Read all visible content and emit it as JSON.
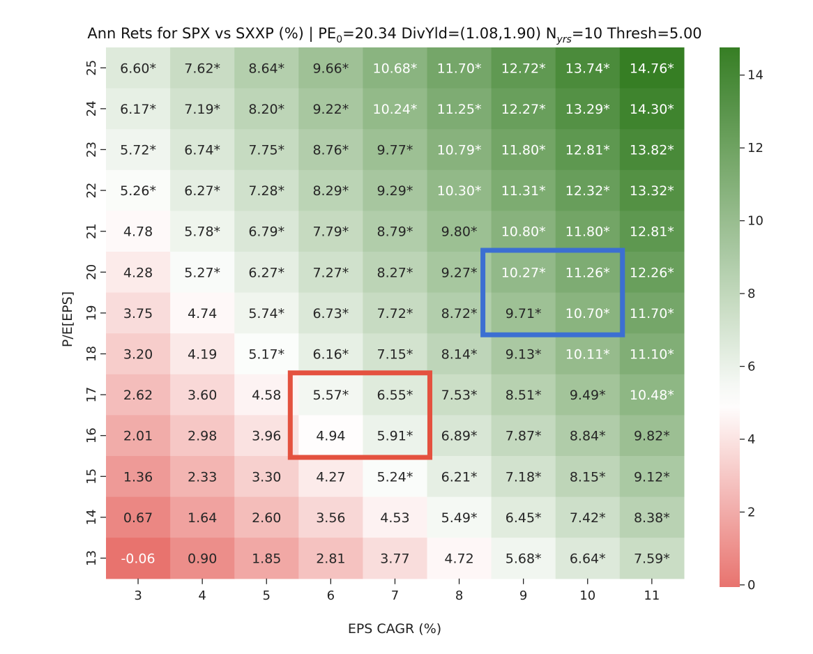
{
  "chart_data": {
    "type": "heatmap",
    "title": {
      "prefix": "Ann Rets for SPX vs SXXP (%) | PE",
      "pe_sub": "0",
      "pe_part": "=20.34 DivYld=(1.08,1.90) N",
      "n_sub": "yrs",
      "rest": "=10 Thresh=5.00"
    },
    "xlabel": "EPS CAGR (%)",
    "ylabel": "P/E[EPS]",
    "x_categories": [
      "3",
      "4",
      "5",
      "6",
      "7",
      "8",
      "9",
      "10",
      "11"
    ],
    "y_categories": [
      "25",
      "24",
      "23",
      "22",
      "21",
      "20",
      "19",
      "18",
      "17",
      "16",
      "15",
      "14",
      "13"
    ],
    "cells": [
      [
        "6.60*",
        "7.62*",
        "8.64*",
        "9.66*",
        "10.68*",
        "11.70*",
        "12.72*",
        "13.74*",
        "14.76*"
      ],
      [
        "6.17*",
        "7.19*",
        "8.20*",
        "9.22*",
        "10.24*",
        "11.25*",
        "12.27*",
        "13.29*",
        "14.30*"
      ],
      [
        "5.72*",
        "6.74*",
        "7.75*",
        "8.76*",
        "9.77*",
        "10.79*",
        "11.80*",
        "12.81*",
        "13.82*"
      ],
      [
        "5.26*",
        "6.27*",
        "7.28*",
        "8.29*",
        "9.29*",
        "10.30*",
        "11.31*",
        "12.32*",
        "13.32*"
      ],
      [
        "4.78",
        "5.78*",
        "6.79*",
        "7.79*",
        "8.79*",
        "9.80*",
        "10.80*",
        "11.80*",
        "12.81*"
      ],
      [
        "4.28",
        "5.27*",
        "6.27*",
        "7.27*",
        "8.27*",
        "9.27*",
        "10.27*",
        "11.26*",
        "12.26*"
      ],
      [
        "3.75",
        "4.74",
        "5.74*",
        "6.73*",
        "7.72*",
        "8.72*",
        "9.71*",
        "10.70*",
        "11.70*"
      ],
      [
        "3.20",
        "4.19",
        "5.17*",
        "6.16*",
        "7.15*",
        "8.14*",
        "9.13*",
        "10.11*",
        "11.10*"
      ],
      [
        "2.62",
        "3.60",
        "4.58",
        "5.57*",
        "6.55*",
        "7.53*",
        "8.51*",
        "9.49*",
        "10.48*"
      ],
      [
        "2.01",
        "2.98",
        "3.96",
        "4.94",
        "5.91*",
        "6.89*",
        "7.87*",
        "8.84*",
        "9.82*"
      ],
      [
        "1.36",
        "2.33",
        "3.30",
        "4.27",
        "5.24*",
        "6.21*",
        "7.18*",
        "8.15*",
        "9.12*"
      ],
      [
        "0.67",
        "1.64",
        "2.60",
        "3.56",
        "4.53",
        "5.49*",
        "6.45*",
        "7.42*",
        "8.38*"
      ],
      [
        "-0.06",
        "0.90",
        "1.85",
        "2.81",
        "3.77",
        "4.72",
        "5.68*",
        "6.64*",
        "7.59*"
      ]
    ],
    "color_scale": {
      "min": -0.06,
      "center": 5.0,
      "max": 14.76,
      "low_color": "#e8736e",
      "mid_color": "#ffffff",
      "high_color": "#367e24"
    },
    "colorbar_ticks": [
      "0",
      "2",
      "4",
      "6",
      "8",
      "10",
      "12",
      "14"
    ],
    "highlights": [
      {
        "name": "blue-box",
        "color": "#3c6fd2",
        "x_from": "9",
        "x_to": "10",
        "y_from": "20",
        "y_to": "19"
      },
      {
        "name": "red-box",
        "color": "#e4513f",
        "x_from": "6",
        "x_to": "7",
        "y_from": "17",
        "y_to": "16"
      }
    ]
  }
}
